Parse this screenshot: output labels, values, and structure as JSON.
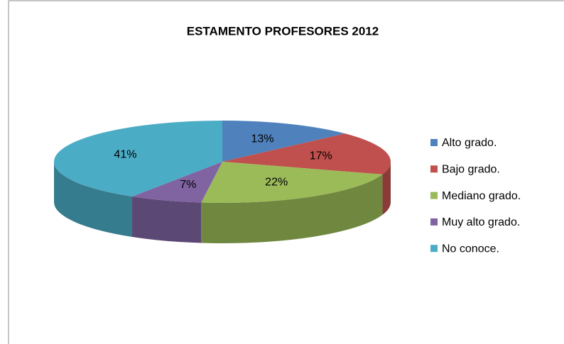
{
  "chart_data": {
    "type": "pie",
    "title": "ESTAMENTO PROFESORES 2012",
    "categories": [
      "Alto grado.",
      "Bajo grado.",
      "Mediano grado.",
      "Muy alto grado.",
      "No conoce."
    ],
    "values": [
      13,
      17,
      22,
      7,
      41
    ],
    "value_labels": [
      "13%",
      "17%",
      "22%",
      "7%",
      "41%"
    ],
    "colors": [
      "#4f81bd",
      "#c0504d",
      "#9bbb59",
      "#8064a2",
      "#4bacc6"
    ],
    "legend": "right"
  }
}
